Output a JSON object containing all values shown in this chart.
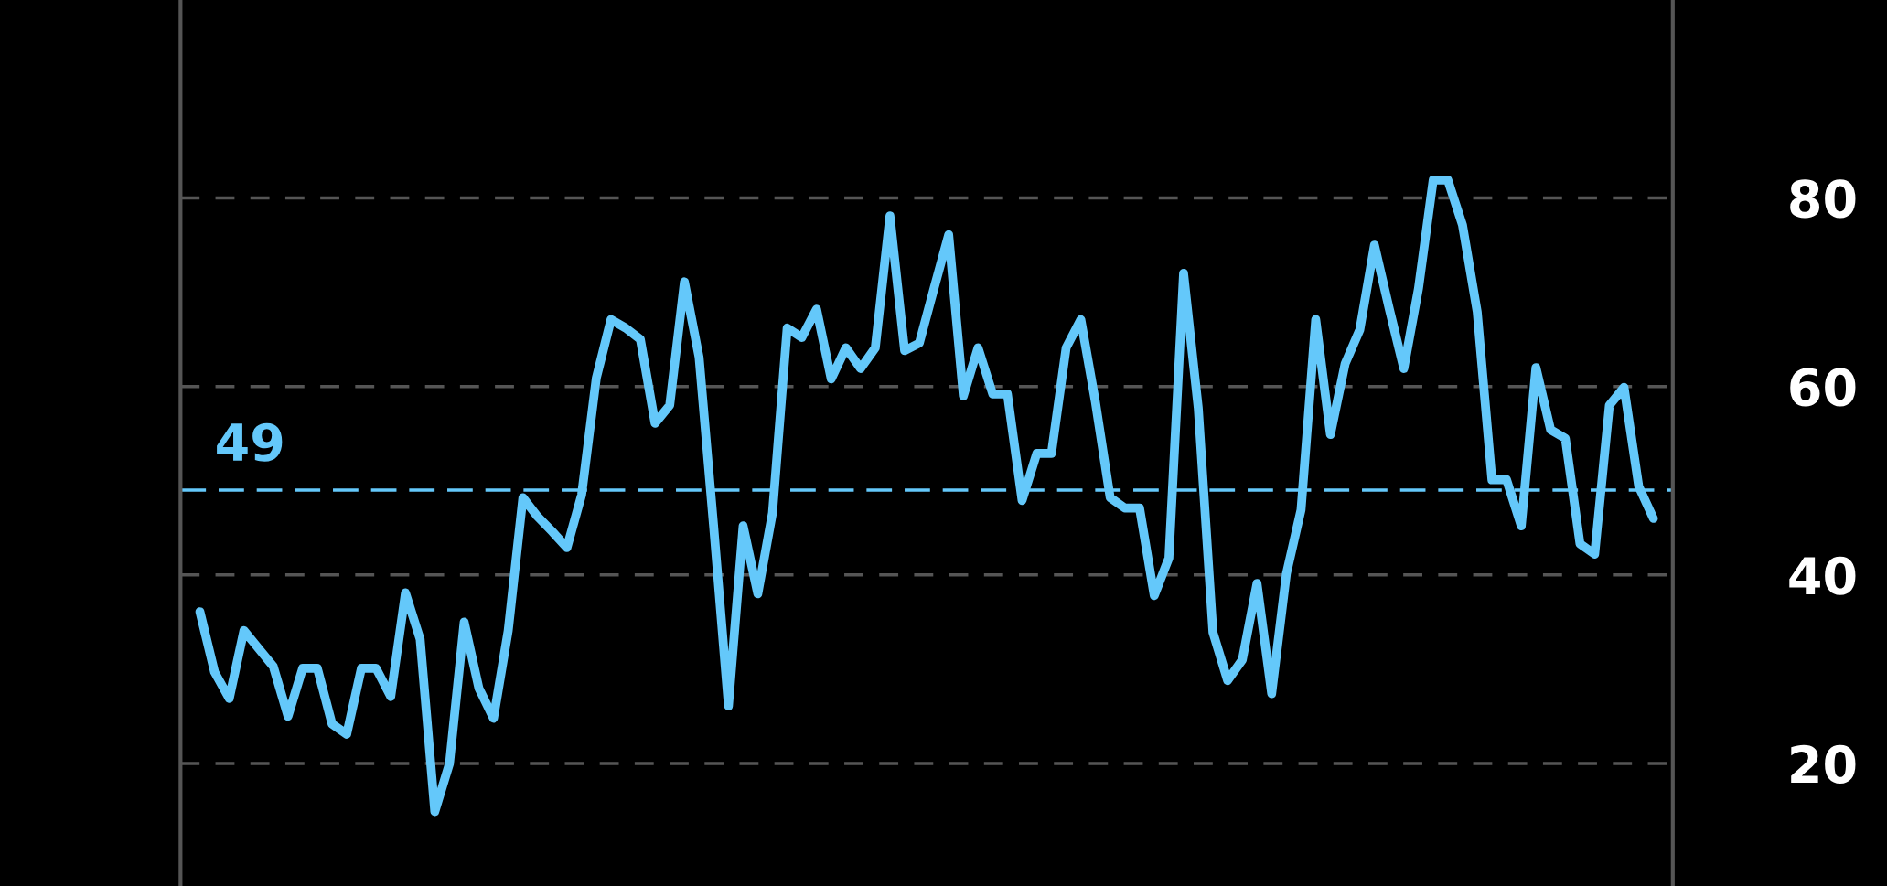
{
  "chart_data": {
    "type": "line",
    "categories": [
      null,
      null,
      null,
      null,
      null,
      null,
      null,
      null,
      null,
      null,
      null,
      null,
      null,
      null,
      null,
      null,
      null,
      null,
      null,
      null,
      null,
      null,
      null,
      null,
      null,
      null,
      null,
      null,
      null,
      null,
      null,
      null,
      null,
      null,
      null,
      null,
      null,
      null,
      null,
      null,
      null,
      null,
      null,
      null,
      null,
      null,
      null,
      null,
      null,
      null,
      null,
      null,
      null,
      null,
      null,
      null,
      null,
      null,
      null,
      null,
      null,
      null,
      null,
      null,
      null,
      null,
      null,
      null,
      null,
      null,
      null,
      null,
      null,
      null,
      null,
      null,
      null,
      null,
      null,
      null,
      null,
      null,
      null,
      null,
      null,
      null,
      null,
      null,
      null,
      null,
      null,
      null,
      null,
      null,
      null,
      null,
      null,
      null,
      null,
      null
    ],
    "series": [
      {
        "color": "#64c8fa",
        "values": [
          36.1,
          29.7,
          26.9,
          34.1,
          32.2,
          30.3,
          25.0,
          30.1,
          30.1,
          24.2,
          23.1,
          30.1,
          30.1,
          27.1,
          38.1,
          33.2,
          14.9,
          20.0,
          35.0,
          28.0,
          24.8,
          34.1,
          48.2,
          46.2,
          44.6,
          42.9,
          48.5,
          60.9,
          67.1,
          66.2,
          65.0,
          56.1,
          58.0,
          71.1,
          63.1,
          45.0,
          26.1,
          45.2,
          38.0,
          46.6,
          66.2,
          65.2,
          68.2,
          60.8,
          64.1,
          61.9,
          64.1,
          78.1,
          63.8,
          64.6,
          70.4,
          76.1,
          59.0,
          64.1,
          59.2,
          59.2,
          47.9,
          52.9,
          52.9,
          64.1,
          67.1,
          58.3,
          48.2,
          47.1,
          47.1,
          37.8,
          41.8,
          72.0,
          57.7,
          33.9,
          28.8,
          31.0,
          39.1,
          27.4,
          40.1,
          46.9,
          67.1,
          54.9,
          62.4,
          66.0,
          75.0,
          68.3,
          61.9,
          70.4,
          81.9,
          81.9,
          77.1,
          67.9,
          50.1,
          50.1,
          45.2,
          62.0,
          55.4,
          54.5,
          43.3,
          42.2,
          58.0,
          59.9,
          49.4,
          46.0
        ]
      }
    ],
    "ylim": [
      7,
      101
    ],
    "yticks": [
      20,
      40,
      60,
      80
    ],
    "grid": "y",
    "tick_labels": "y",
    "ref_lines": [
      {
        "axis": "y",
        "value": 49,
        "label": "49",
        "color": "#64c8fa",
        "line_style": "dashed"
      }
    ]
  }
}
